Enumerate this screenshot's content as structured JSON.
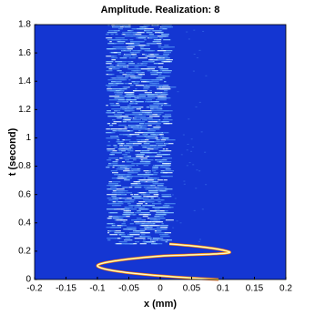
{
  "chart_data": {
    "type": "heatmap",
    "title": "Amplitude. Realization: 8",
    "x_label": "x (mm)",
    "y_label": "t (second)",
    "xlim": [
      -0.2,
      0.2
    ],
    "ylim": [
      0,
      1.8
    ],
    "xticks": [
      -0.2,
      -0.15,
      -0.1,
      -0.05,
      0,
      0.05,
      0.1,
      0.15,
      0.2
    ],
    "yticks": [
      0,
      0.2,
      0.4,
      0.6,
      0.8,
      1,
      1.2,
      1.4,
      1.6,
      1.8
    ]
  }
}
